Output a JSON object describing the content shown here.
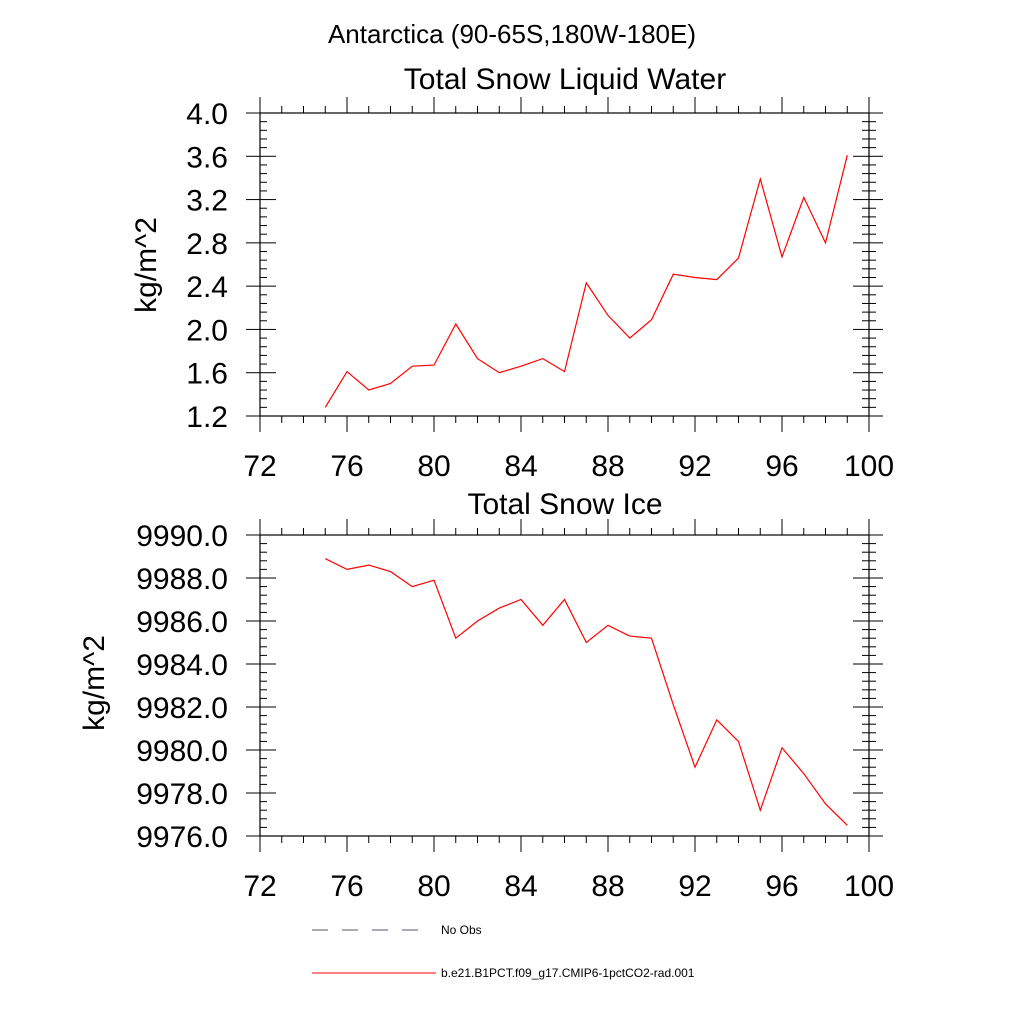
{
  "page_title": "Antarctica (90-65S,180W-180E)",
  "colors": {
    "series": "#ff0000",
    "axis": "#000000",
    "no_obs": "#555577"
  },
  "legend": {
    "no_obs_label": "No Obs",
    "series_label": "b.e21.B1PCT.f09_g17.CMIP6-1pctCO2-rad.001"
  },
  "chart_data": [
    {
      "type": "line",
      "title": "Total Snow Liquid Water",
      "xlabel": "",
      "ylabel": "kg/m^2",
      "xlim": [
        72,
        100
      ],
      "ylim": [
        1.2,
        4.0
      ],
      "x_ticks": [
        72,
        76,
        80,
        84,
        88,
        92,
        96,
        100
      ],
      "y_ticks": [
        1.2,
        1.6,
        2.0,
        2.4,
        2.8,
        3.2,
        3.6,
        4.0
      ],
      "y_tick_labels": [
        "1.2",
        "1.6",
        "2.0",
        "2.4",
        "2.8",
        "3.2",
        "3.6",
        "4.0"
      ],
      "grid": false,
      "series": [
        {
          "name": "b.e21.B1PCT.f09_g17.CMIP6-1pctCO2-rad.001",
          "x": [
            75,
            76,
            77,
            78,
            79,
            80,
            81,
            82,
            83,
            84,
            85,
            86,
            87,
            88,
            89,
            90,
            91,
            92,
            93,
            94,
            95,
            96,
            97,
            98,
            99
          ],
          "y": [
            1.28,
            1.61,
            1.44,
            1.5,
            1.66,
            1.67,
            2.05,
            1.73,
            1.6,
            1.66,
            1.73,
            1.61,
            2.43,
            2.13,
            1.92,
            2.09,
            2.51,
            2.48,
            2.46,
            2.66,
            3.39,
            2.67,
            3.22,
            2.8,
            3.61
          ]
        }
      ]
    },
    {
      "type": "line",
      "title": "Total Snow Ice",
      "xlabel": "",
      "ylabel": "kg/m^2",
      "xlim": [
        72,
        100
      ],
      "ylim": [
        9976.0,
        9990.0
      ],
      "x_ticks": [
        72,
        76,
        80,
        84,
        88,
        92,
        96,
        100
      ],
      "y_ticks": [
        9976,
        9978,
        9980,
        9982,
        9984,
        9986,
        9988,
        9990
      ],
      "y_tick_labels": [
        "9976.0",
        "9978.0",
        "9980.0",
        "9982.0",
        "9984.0",
        "9986.0",
        "9988.0",
        "9990.0"
      ],
      "grid": false,
      "series": [
        {
          "name": "b.e21.B1PCT.f09_g17.CMIP6-1pctCO2-rad.001",
          "x": [
            75,
            76,
            77,
            78,
            79,
            80,
            81,
            82,
            83,
            84,
            85,
            86,
            87,
            88,
            89,
            90,
            91,
            92,
            93,
            94,
            95,
            96,
            97,
            98,
            99
          ],
          "y": [
            9988.9,
            9988.4,
            9988.6,
            9988.3,
            9987.6,
            9987.9,
            9985.2,
            9986.0,
            9986.6,
            9987.0,
            9985.8,
            9987.0,
            9985.0,
            9985.8,
            9985.3,
            9985.2,
            9982.1,
            9979.2,
            9981.4,
            9980.4,
            9977.2,
            9980.1,
            9978.9,
            9977.5,
            9976.5
          ]
        }
      ]
    }
  ]
}
